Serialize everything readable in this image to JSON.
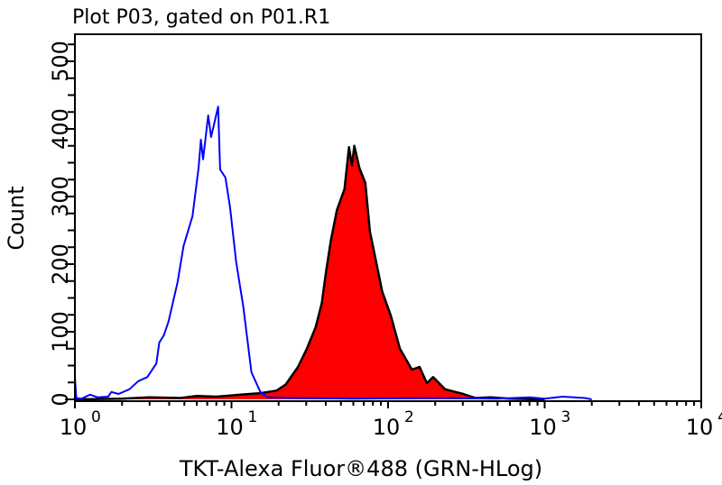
{
  "chart_data": {
    "type": "area",
    "title": "Plot P03, gated on P01.R1",
    "xlabel": "TKT-Alexa Fluor®488 (GRN-HLog)",
    "ylabel": "Count",
    "xscale": "log",
    "xlim": [
      1,
      10000
    ],
    "ylim": [
      0,
      540
    ],
    "x_ticks": [
      {
        "base": "10",
        "exp": "0",
        "value": 1
      },
      {
        "base": "10",
        "exp": "1",
        "value": 10
      },
      {
        "base": "10",
        "exp": "2",
        "value": 100
      },
      {
        "base": "10",
        "exp": "3",
        "value": 1000
      },
      {
        "base": "10",
        "exp": "4",
        "value": 10000
      }
    ],
    "y_ticks": [
      "0",
      "100",
      "200",
      "300",
      "400",
      "500"
    ],
    "y_tick_values": [
      0,
      100,
      200,
      300,
      400,
      500
    ],
    "grid": false,
    "series": [
      {
        "style": "outline",
        "color": "#0000ff",
        "points": [
          [
            1.0,
            33
          ],
          [
            1.02,
            2
          ],
          [
            1.1,
            1
          ],
          [
            1.25,
            7
          ],
          [
            1.4,
            3
          ],
          [
            1.63,
            4
          ],
          [
            1.71,
            11
          ],
          [
            1.9,
            8
          ],
          [
            2.23,
            15
          ],
          [
            2.54,
            27
          ],
          [
            2.9,
            33
          ],
          [
            3.31,
            53
          ],
          [
            3.46,
            84
          ],
          [
            3.7,
            95
          ],
          [
            3.96,
            115
          ],
          [
            4.52,
            173
          ],
          [
            4.94,
            227
          ],
          [
            5.64,
            271
          ],
          [
            6.16,
            342
          ],
          [
            6.38,
            384
          ],
          [
            6.58,
            355
          ],
          [
            7.1,
            420
          ],
          [
            7.41,
            388
          ],
          [
            8.22,
            433
          ],
          [
            8.46,
            340
          ],
          [
            9.15,
            328
          ],
          [
            9.79,
            284
          ],
          [
            10.7,
            204
          ],
          [
            11.9,
            137
          ],
          [
            13.4,
            40
          ],
          [
            15.3,
            11
          ],
          [
            17,
            3
          ],
          [
            25,
            2
          ],
          [
            60,
            1
          ],
          [
            200,
            2
          ],
          [
            500,
            1
          ],
          [
            800,
            3
          ],
          [
            1000,
            1
          ],
          [
            1300,
            4
          ],
          [
            1800,
            2
          ],
          [
            2000,
            0
          ]
        ]
      },
      {
        "style": "filled",
        "color": "#ff0000",
        "outline_color": "#000000",
        "points": [
          [
            1.0,
            0
          ],
          [
            2,
            1
          ],
          [
            3,
            3
          ],
          [
            4.72,
            2
          ],
          [
            6,
            5
          ],
          [
            8,
            4
          ],
          [
            11.4,
            7
          ],
          [
            15,
            9
          ],
          [
            19.4,
            13
          ],
          [
            22.2,
            22
          ],
          [
            26.6,
            48
          ],
          [
            30.3,
            75
          ],
          [
            34.5,
            107
          ],
          [
            37.7,
            142
          ],
          [
            40.3,
            191
          ],
          [
            43.1,
            235
          ],
          [
            47.1,
            280
          ],
          [
            52.7,
            311
          ],
          [
            56.3,
            373
          ],
          [
            58.8,
            346
          ],
          [
            60.9,
            375
          ],
          [
            65.7,
            342
          ],
          [
            71.6,
            320
          ],
          [
            76.6,
            248
          ],
          [
            83.8,
            204
          ],
          [
            91.6,
            160
          ],
          [
            104,
            124
          ],
          [
            119,
            75
          ],
          [
            142,
            44
          ],
          [
            159,
            48
          ],
          [
            177,
            24
          ],
          [
            194,
            33
          ],
          [
            231,
            15
          ],
          [
            302,
            8
          ],
          [
            362,
            2
          ],
          [
            450,
            3
          ],
          [
            600,
            1
          ],
          [
            1000,
            0
          ]
        ]
      }
    ]
  }
}
